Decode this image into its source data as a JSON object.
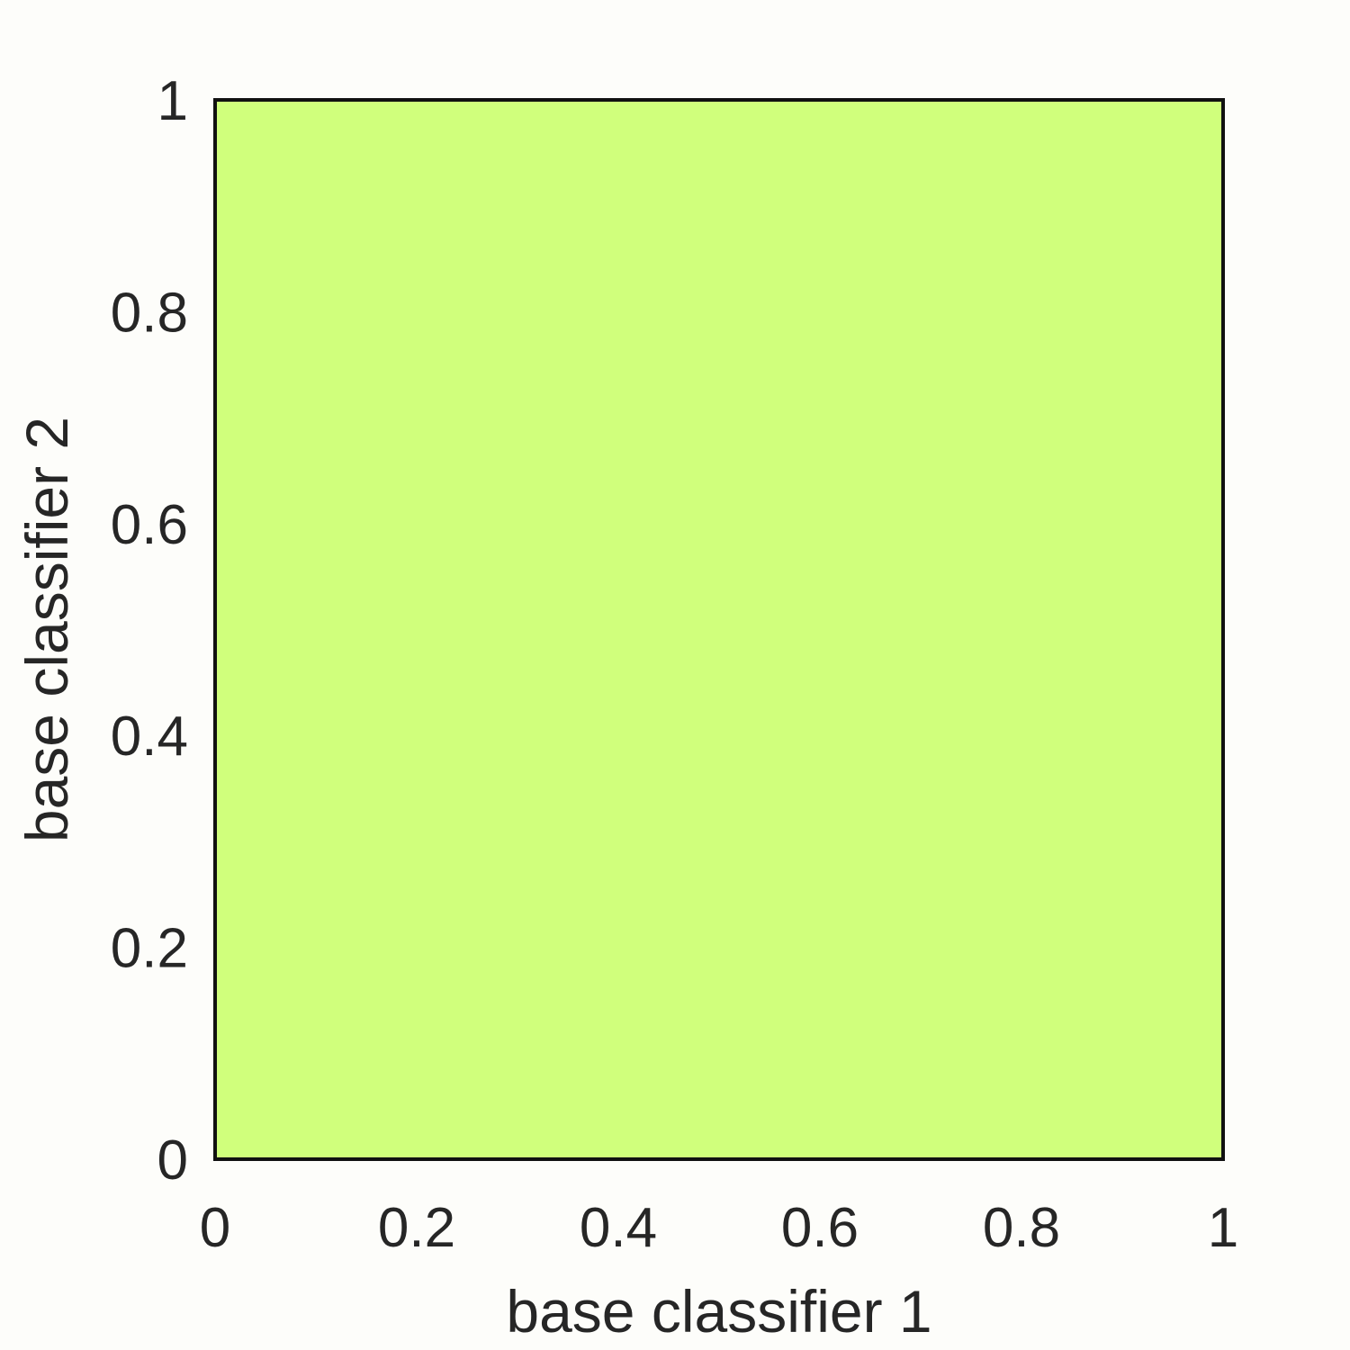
{
  "chart_data": {
    "type": "heatmap",
    "title": "",
    "xlabel": "base classifier 1",
    "ylabel": "base classifier 2",
    "xlim": [
      0,
      1
    ],
    "ylim": [
      0,
      1
    ],
    "x_ticks": [
      "0",
      "0.2",
      "0.4",
      "0.6",
      "0.8",
      "1"
    ],
    "y_ticks": [
      "0",
      "0.2",
      "0.4",
      "0.6",
      "0.8",
      "1"
    ],
    "grid": false,
    "legend": "none",
    "regions": [
      {
        "x_range": [
          0,
          1
        ],
        "y_range": [
          0,
          1
        ],
        "color": "#d0ff7c"
      }
    ]
  },
  "colors": {
    "background": "#fdfdfa",
    "axes_frame": "#111111",
    "text": "#262626"
  }
}
